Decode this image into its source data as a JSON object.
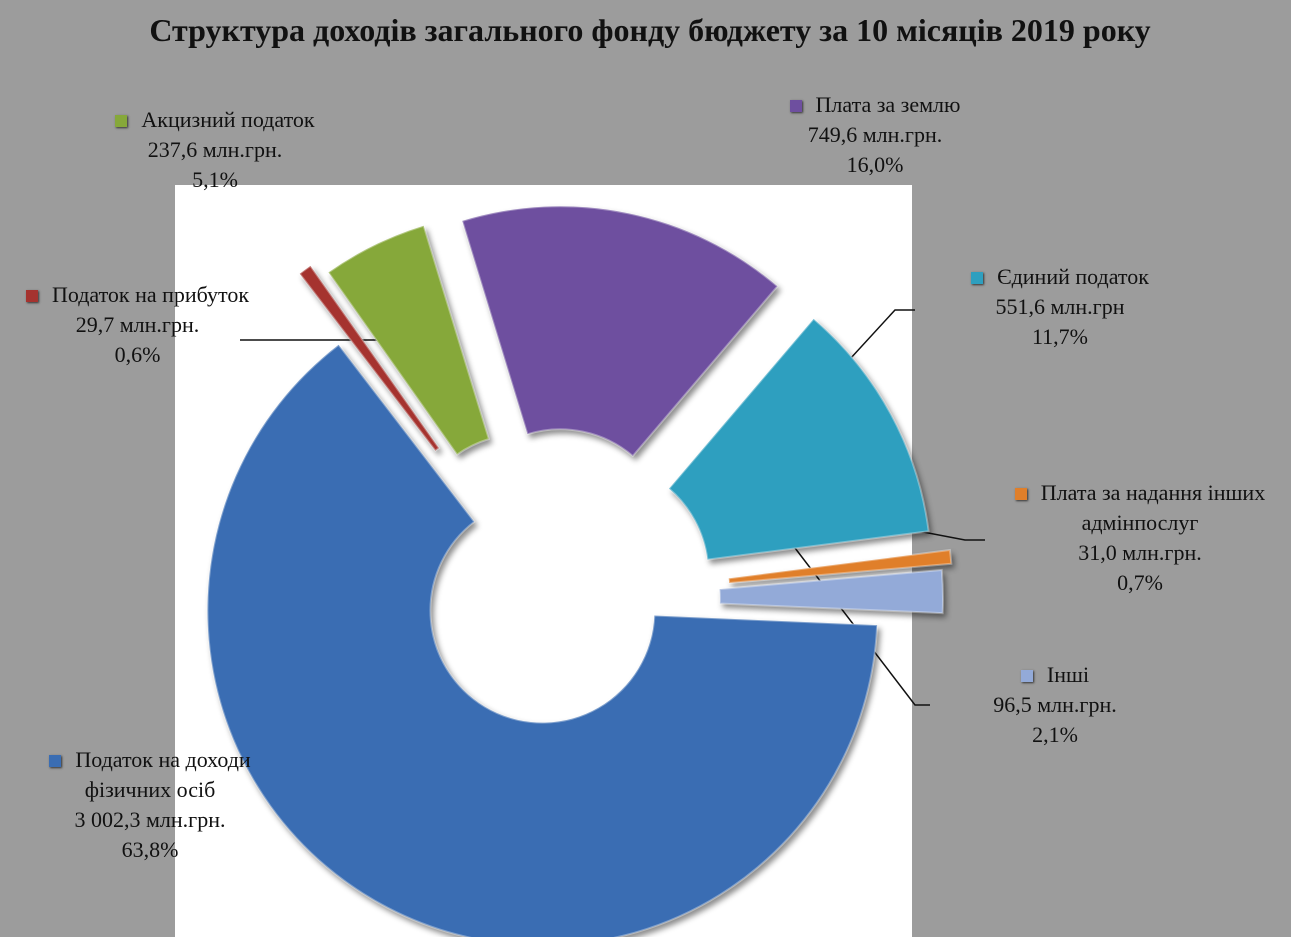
{
  "chart_data": {
    "type": "pie",
    "donut": true,
    "title": "Структура доходів загального фонду бюджету за 10 місяців 2019 року",
    "categories": [
      "Плата за землю",
      "Єдиний податок",
      "Плата за надання інших адмінпослуг",
      "Інші",
      "Податок на доходи фізичних осіб",
      "Податок на прибуток",
      "Акцизний податок"
    ],
    "values": [
      749.6,
      551.6,
      31.0,
      96.5,
      3002.3,
      29.7,
      237.6
    ],
    "value_labels": [
      "749,6 млн.грн.",
      "551,6 млн.грн",
      "31,0 млн.грн.",
      "96,5 млн.грн.",
      "3 002,3 млн.грн.",
      "29,7 млн.грн.",
      "237,6 млн.грн."
    ],
    "percents": [
      16.0,
      11.7,
      0.7,
      2.1,
      63.8,
      0.6,
      5.1
    ],
    "percent_labels": [
      "16,0%",
      "11,7%",
      "0,7%",
      "2,1%",
      "63,8%",
      "0,6%",
      "5,1%"
    ],
    "colors": [
      "#6e4f9f",
      "#2e9fbf",
      "#e07f2a",
      "#93aad8",
      "#3a6db3",
      "#a5332f",
      "#86a83a"
    ]
  }
}
